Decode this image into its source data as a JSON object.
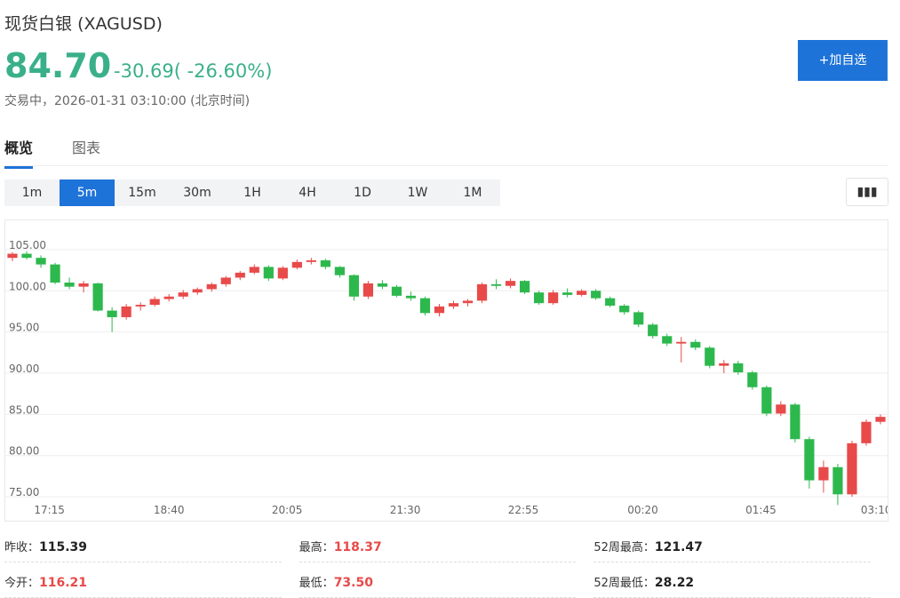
{
  "header": {
    "name": "现货白银",
    "symbol": "(XAGUSD)",
    "price": "84.70",
    "change": "-30.69",
    "change_pct": "( -26.60%)",
    "status": "交易中，",
    "time": "2026-01-31 03:10:00",
    "timezone": "(北京时间)",
    "button": "+加自选"
  },
  "tabs": {
    "items": [
      "概览",
      "图表"
    ],
    "active": 0
  },
  "periods": {
    "items": [
      "1m",
      "5m",
      "15m",
      "30m",
      "1H",
      "4H",
      "1D",
      "1W",
      "1M"
    ],
    "active": 1
  },
  "chart_data": {
    "type": "candlestick",
    "up_color": "#e84a4a",
    "down_color": "#2db84d",
    "grid": true,
    "xlim": [
      -0.5,
      61.5
    ],
    "xticks": [
      {
        "value": 2.6,
        "label": "17:15"
      },
      {
        "value": 11.0,
        "label": "18:40"
      },
      {
        "value": 19.3,
        "label": "20:05"
      },
      {
        "value": 27.6,
        "label": "21:30"
      },
      {
        "value": 35.9,
        "label": "22:55"
      },
      {
        "value": 44.3,
        "label": "00:20"
      },
      {
        "value": 52.6,
        "label": "01:45"
      },
      {
        "value": 60.7,
        "label": "03:10"
      }
    ],
    "ylim": [
      72.1,
      108.55
    ],
    "yticks": [
      {
        "value": 75,
        "label": "75.00"
      },
      {
        "value": 80,
        "label": "80.00"
      },
      {
        "value": 85,
        "label": "85.00"
      },
      {
        "value": 90,
        "label": "90.00"
      },
      {
        "value": 95,
        "label": "95.00"
      },
      {
        "value": 100,
        "label": "100.00"
      },
      {
        "value": 105,
        "label": "105.00"
      }
    ],
    "candles": [
      [
        104,
        104.7,
        103.6,
        104.5
      ],
      [
        104.5,
        104.8,
        103.8,
        104.0
      ],
      [
        104.0,
        104.3,
        102.8,
        103.2
      ],
      [
        103.2,
        103.4,
        100.8,
        101.0
      ],
      [
        101.0,
        101.6,
        100.2,
        100.5
      ],
      [
        100.5,
        101.2,
        99.8,
        100.9
      ],
      [
        100.9,
        101.0,
        97.5,
        97.6
      ],
      [
        97.6,
        98.0,
        95.0,
        96.8
      ],
      [
        96.8,
        98.4,
        96.5,
        98.1
      ],
      [
        98.1,
        98.6,
        97.6,
        98.3
      ],
      [
        98.3,
        99.3,
        98.1,
        99.0
      ],
      [
        99.0,
        99.6,
        98.7,
        99.3
      ],
      [
        99.3,
        100.1,
        99.0,
        99.8
      ],
      [
        99.8,
        100.4,
        99.5,
        100.2
      ],
      [
        100.2,
        101.0,
        99.9,
        100.8
      ],
      [
        100.8,
        101.8,
        100.5,
        101.6
      ],
      [
        101.6,
        102.4,
        101.3,
        102.2
      ],
      [
        102.2,
        103.2,
        102.0,
        102.9
      ],
      [
        102.9,
        103.1,
        101.2,
        101.5
      ],
      [
        101.5,
        103.0,
        101.3,
        102.8
      ],
      [
        102.8,
        103.8,
        102.6,
        103.5
      ],
      [
        103.5,
        104.0,
        103.2,
        103.7
      ],
      [
        103.7,
        103.9,
        102.6,
        102.9
      ],
      [
        102.9,
        103.0,
        101.6,
        101.9
      ],
      [
        101.9,
        102.0,
        98.8,
        99.3
      ],
      [
        99.3,
        101.2,
        99.0,
        100.9
      ],
      [
        100.9,
        101.3,
        100.2,
        100.5
      ],
      [
        100.5,
        100.7,
        99.2,
        99.4
      ],
      [
        99.4,
        99.9,
        98.8,
        99.1
      ],
      [
        99.1,
        99.3,
        97.0,
        97.3
      ],
      [
        97.3,
        98.4,
        96.9,
        98.1
      ],
      [
        98.1,
        98.8,
        97.8,
        98.5
      ],
      [
        98.5,
        99.0,
        98.1,
        98.8
      ],
      [
        98.8,
        101.0,
        98.5,
        100.8
      ],
      [
        100.8,
        101.4,
        100.2,
        100.6
      ],
      [
        100.6,
        101.5,
        100.3,
        101.2
      ],
      [
        101.2,
        101.3,
        99.6,
        99.8
      ],
      [
        99.8,
        100.0,
        98.3,
        98.5
      ],
      [
        98.5,
        100.1,
        98.3,
        99.8
      ],
      [
        99.8,
        100.3,
        99.2,
        99.5
      ],
      [
        99.5,
        100.2,
        99.3,
        100.0
      ],
      [
        100.0,
        100.2,
        98.9,
        99.1
      ],
      [
        99.1,
        99.3,
        98.0,
        98.2
      ],
      [
        98.2,
        98.4,
        97.1,
        97.4
      ],
      [
        97.4,
        97.6,
        95.6,
        95.9
      ],
      [
        95.9,
        96.1,
        94.2,
        94.5
      ],
      [
        94.5,
        94.8,
        93.3,
        93.6
      ],
      [
        93.6,
        94.4,
        91.3,
        93.8
      ],
      [
        93.8,
        94.1,
        92.8,
        93.1
      ],
      [
        93.1,
        93.3,
        90.6,
        90.9
      ],
      [
        90.9,
        91.6,
        90.0,
        91.2
      ],
      [
        91.2,
        91.5,
        89.8,
        90.1
      ],
      [
        90.1,
        90.3,
        88.0,
        88.3
      ],
      [
        88.3,
        88.5,
        84.8,
        85.1
      ],
      [
        85.1,
        86.6,
        84.8,
        86.2
      ],
      [
        86.2,
        86.4,
        81.6,
        82.0
      ],
      [
        82.0,
        82.3,
        76.0,
        77.0
      ],
      [
        77.0,
        79.4,
        75.5,
        78.6
      ],
      [
        78.6,
        79.0,
        74.0,
        75.3
      ],
      [
        75.3,
        81.8,
        75.0,
        81.5
      ],
      [
        81.5,
        84.4,
        81.2,
        84.1
      ],
      [
        84.1,
        85.0,
        83.8,
        84.7
      ]
    ]
  },
  "stats": [
    [
      {
        "label": "昨收：",
        "value": "115.39",
        "color": "#222"
      },
      {
        "label": "最高：",
        "value": "118.37",
        "color": "#e84a4a"
      },
      {
        "label": "52周最高：",
        "value": "121.47",
        "color": "#222"
      }
    ],
    [
      {
        "label": "今开：",
        "value": "116.21",
        "color": "#e84a4a"
      },
      {
        "label": "最低：",
        "value": "73.50",
        "color": "#e84a4a"
      },
      {
        "label": "52周最低：",
        "value": "28.22",
        "color": "#222"
      }
    ]
  ]
}
